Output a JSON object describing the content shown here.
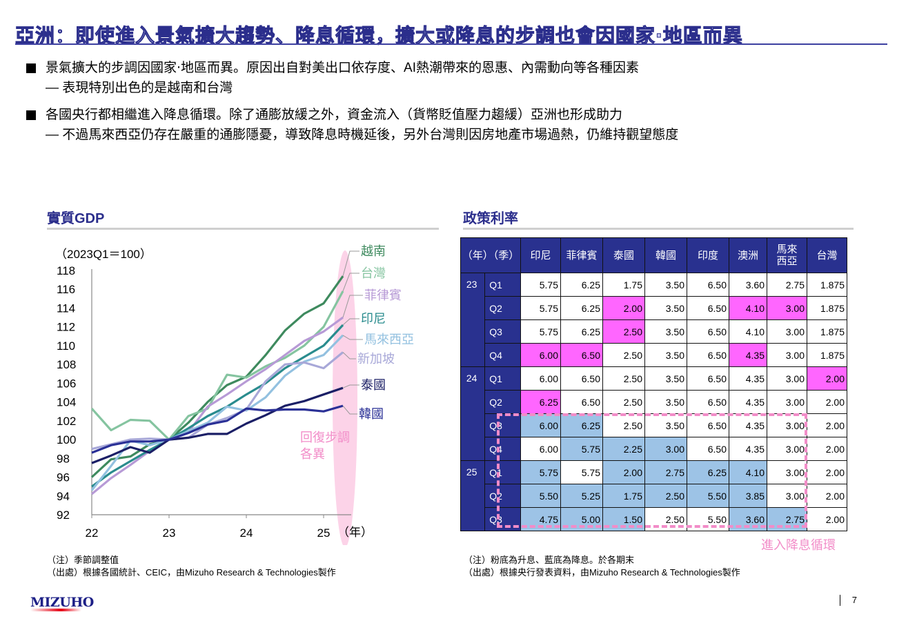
{
  "header": {
    "title": "亞洲：即使進入景氣擴大趨勢、降息循環，擴大或降息的步調也會因國家‧地區而異"
  },
  "bullets": [
    {
      "main": "景氣擴大的步調因國家‧地區而異。原因出自對美出口依存度、AI熱潮帶來的恩惠、內需動向等各種因素",
      "sub": "— 表現特別出色的是越南和台灣"
    },
    {
      "main": "各國央行都相繼進入降息循環。除了通膨放緩之外，資金流入（貨幣貶值壓力趨緩）亞洲也形成助力",
      "sub": "— 不過馬來西亞仍存在嚴重的通膨隱憂，導致降息時機延後，另外台灣則因房地產市場過熱，仍維持觀望態度"
    }
  ],
  "gdp_section": {
    "title": "實質GDP",
    "note": "（注）季節調整值",
    "source": "（出處）根據各國統計、CEIC，由Mizuho Research & Technologies製作",
    "annotation": [
      "回復步調",
      "各異"
    ]
  },
  "chart_data": {
    "type": "line",
    "title": "實質GDP",
    "ylabel": "（2023Q1＝100）",
    "xlabel": "（年）",
    "x": [
      "22Q1",
      "22Q2",
      "22Q3",
      "22Q4",
      "23Q1",
      "23Q2",
      "23Q3",
      "23Q4",
      "24Q1",
      "24Q2",
      "24Q3",
      "24Q4",
      "25Q1",
      "25Q2"
    ],
    "xticks": [
      "22",
      "23",
      "24",
      "25"
    ],
    "yticks": [
      92,
      94,
      96,
      98,
      100,
      102,
      104,
      106,
      108,
      110,
      112,
      114,
      116,
      118
    ],
    "ylim": [
      92,
      118
    ],
    "grid": false,
    "legend": "right (direct labels)",
    "series": [
      {
        "name": "越南",
        "color": "#3e8a5e",
        "values": [
          96.0,
          97.9,
          98.2,
          99.5,
          100,
          101.8,
          104.0,
          105.8,
          106.7,
          109.0,
          111.6,
          113.4,
          114.5,
          117.4
        ]
      },
      {
        "name": "台灣",
        "color": "#85c4a0",
        "values": [
          103.3,
          101.0,
          102.1,
          102.0,
          100,
          102.5,
          103.3,
          106.9,
          106.6,
          107.8,
          108.7,
          110.0,
          112.0,
          115.8
        ]
      },
      {
        "name": "菲律賓",
        "color": "#b79ad6",
        "values": [
          94.2,
          95.9,
          97.3,
          98.8,
          100,
          100.8,
          103.5,
          104.8,
          106.2,
          107.5,
          109.0,
          110.5,
          111.5,
          113.0
        ]
      },
      {
        "name": "印尼",
        "color": "#2a8c8e",
        "values": [
          95.0,
          96.5,
          97.7,
          98.9,
          100,
          101.2,
          102.5,
          103.5,
          104.8,
          106.0,
          107.6,
          108.8,
          110.0,
          112.2
        ]
      },
      {
        "name": "馬來西亞",
        "color": "#93c1e0",
        "values": [
          94.6,
          97.2,
          99.9,
          99.4,
          100,
          100.9,
          101.8,
          103.5,
          103.1,
          104.5,
          106.8,
          108.3,
          109.0,
          111.1
        ]
      },
      {
        "name": "新加坡",
        "color": "#a8a8d8",
        "values": [
          99.0,
          99.5,
          100.0,
          100.1,
          100,
          100.2,
          101.6,
          102.3,
          103.2,
          106.2,
          108.0,
          108.2,
          107.6,
          109.3
        ]
      },
      {
        "name": "泰國",
        "color": "#1b1f66",
        "values": [
          97.5,
          98.3,
          99.2,
          98.6,
          100,
          100.2,
          100.6,
          100.6,
          101.7,
          102.6,
          103.6,
          104.1,
          104.8,
          105.5
        ]
      },
      {
        "name": "韓國",
        "color": "#2a3096",
        "values": [
          98.6,
          99.4,
          99.8,
          99.8,
          100,
          100.7,
          101.6,
          102.0,
          103.3,
          103.1,
          103.2,
          103.2,
          103.0,
          103.6
        ]
      }
    ]
  },
  "rate_section": {
    "title": "政策利率",
    "header_period": "（年）（季）",
    "columns": [
      "印尼",
      "菲律賓",
      "泰國",
      "韓國",
      "印度",
      "澳洲",
      "馬來\n西亞",
      "台灣"
    ],
    "rows": [
      {
        "year": "23",
        "q": "Q1",
        "values": [
          "5.75",
          "6.25",
          "1.75",
          "3.50",
          "6.50",
          "3.60",
          "2.75",
          "1.875"
        ],
        "marks": [
          "",
          "",
          "",
          "",
          "",
          "",
          "",
          ""
        ]
      },
      {
        "year": "",
        "q": "Q2",
        "values": [
          "5.75",
          "6.25",
          "2.00",
          "3.50",
          "6.50",
          "4.10",
          "3.00",
          "1.875"
        ],
        "marks": [
          "",
          "",
          "up",
          "",
          "",
          "up",
          "up",
          ""
        ]
      },
      {
        "year": "",
        "q": "Q3",
        "values": [
          "5.75",
          "6.25",
          "2.50",
          "3.50",
          "6.50",
          "4.10",
          "3.00",
          "1.875"
        ],
        "marks": [
          "",
          "",
          "up",
          "",
          "",
          "",
          "",
          ""
        ]
      },
      {
        "year": "",
        "q": "Q4",
        "values": [
          "6.00",
          "6.50",
          "2.50",
          "3.50",
          "6.50",
          "4.35",
          "3.00",
          "1.875"
        ],
        "marks": [
          "up",
          "up",
          "",
          "",
          "",
          "up",
          "",
          ""
        ]
      },
      {
        "year": "24",
        "q": "Q1",
        "values": [
          "6.00",
          "6.50",
          "2.50",
          "3.50",
          "6.50",
          "4.35",
          "3.00",
          "2.00"
        ],
        "marks": [
          "",
          "",
          "",
          "",
          "",
          "",
          "",
          "up"
        ]
      },
      {
        "year": "",
        "q": "Q2",
        "values": [
          "6.25",
          "6.50",
          "2.50",
          "3.50",
          "6.50",
          "4.35",
          "3.00",
          "2.00"
        ],
        "marks": [
          "up",
          "",
          "",
          "",
          "",
          "",
          "",
          ""
        ]
      },
      {
        "year": "",
        "q": "Q3",
        "values": [
          "6.00",
          "6.25",
          "2.50",
          "3.50",
          "6.50",
          "4.35",
          "3.00",
          "2.00"
        ],
        "marks": [
          "down",
          "down",
          "",
          "",
          "",
          "",
          "",
          ""
        ]
      },
      {
        "year": "",
        "q": "Q4",
        "values": [
          "6.00",
          "5.75",
          "2.25",
          "3.00",
          "6.50",
          "4.35",
          "3.00",
          "2.00"
        ],
        "marks": [
          "",
          "down",
          "down",
          "down",
          "",
          "",
          "",
          ""
        ]
      },
      {
        "year": "25",
        "q": "Q1",
        "values": [
          "5.75",
          "5.75",
          "2.00",
          "2.75",
          "6.25",
          "4.10",
          "3.00",
          "2.00"
        ],
        "marks": [
          "down",
          "",
          "down",
          "down",
          "down",
          "down",
          "",
          ""
        ]
      },
      {
        "year": "",
        "q": "Q2",
        "values": [
          "5.50",
          "5.25",
          "1.75",
          "2.50",
          "5.50",
          "3.85",
          "3.00",
          "2.00"
        ],
        "marks": [
          "down",
          "down",
          "down",
          "down",
          "down",
          "down",
          "",
          ""
        ]
      },
      {
        "year": "",
        "q": "Q3",
        "values": [
          "4.75",
          "5.00",
          "1.50",
          "2.50",
          "5.50",
          "3.60",
          "2.75",
          "2.00"
        ],
        "marks": [
          "down",
          "down",
          "down",
          "",
          "",
          "down",
          "down",
          ""
        ]
      }
    ],
    "annotation": "進入降息循環",
    "note": "（注）粉底為升息、藍底為降息。於各期末",
    "source": "（出處）根據央行發表資料，由Mizuho Research & Technologies製作",
    "colors": {
      "header": "#29318f",
      "up": "#ff66ff",
      "down": "#9dc3e6",
      "highlight_box": "#f28cc8"
    }
  },
  "footer": {
    "logo": "MIZUHO",
    "page": "7"
  }
}
